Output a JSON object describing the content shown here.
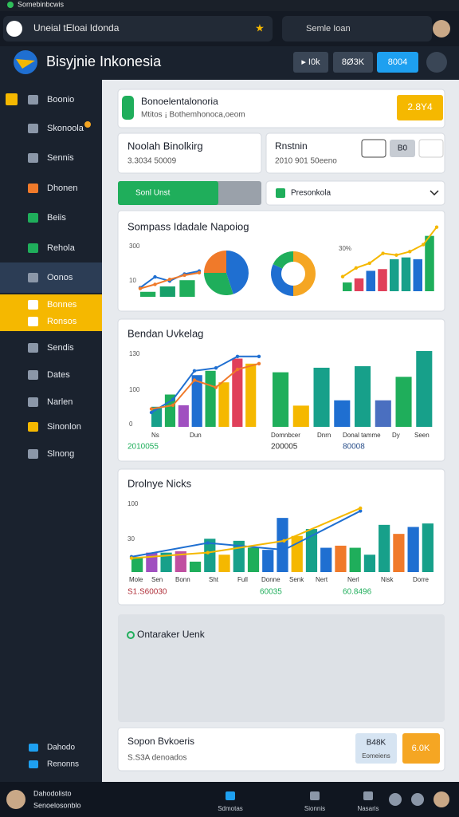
{
  "browser": {
    "tab": "Somebinbcwis",
    "address": "Uneial tEloai Idonda",
    "search": "Semle Ioan"
  },
  "header": {
    "title": "Bisyjnie Inkonesia",
    "buttons": [
      "▸ I0k",
      "8Ø3K",
      "8004"
    ]
  },
  "sidebar": {
    "items": [
      "Boonio",
      "Skonoola",
      "Sennis",
      "Dhonen",
      "Beiis",
      "Rehola",
      "Oonos",
      "Bonnes",
      "Ronsos",
      "Sendis",
      "Dates",
      "Narlen",
      "Sinonlon",
      "Slnong"
    ],
    "bottom": [
      "Dahodo",
      "Renonns"
    ]
  },
  "banner": {
    "title": "Bonoelentalonoria",
    "subtitle": "Mtitos ¡ Bothemhonoca,oeom",
    "badge": "2.8Y4"
  },
  "cards": [
    {
      "title": "Noolah Binolkirg",
      "subtitle": "3.3034 50009"
    },
    {
      "title": "Rnstnin",
      "subtitle": "2010 901 50eeno",
      "button": "B0"
    }
  ],
  "progress": {
    "label": "Sonl Unst",
    "value": 70
  },
  "select": {
    "label": "Presonkola"
  },
  "charts": [
    {
      "title": "Sompass Idadale Napoiog",
      "axis_labels": [
        "300",
        "10"
      ],
      "note": "30%",
      "left": {
        "ylim": [
          0,
          100
        ],
        "bars": [
          {
            "value": 12,
            "color": "#1fae5b"
          },
          {
            "value": 25,
            "color": "#17a06a"
          },
          {
            "value": 40,
            "color": "#1fae5b"
          }
        ],
        "lines": [
          {
            "color": "#1f6fd1",
            "values": [
              22,
              48,
              38,
              55,
              62
            ]
          },
          {
            "color": "#f07a2a",
            "values": [
              20,
              30,
              42,
              52,
              58
            ]
          }
        ]
      },
      "pie": {
        "values": [
          45,
          30,
          25
        ],
        "colors": [
          "#1f6fd1",
          "#1fae5b",
          "#f07a2a"
        ]
      },
      "donut": {
        "values": [
          50,
          32,
          18
        ],
        "colors": [
          "#f5a623",
          "#1f6fd1",
          "#1fae5b"
        ]
      },
      "right": {
        "ylim": [
          0,
          100
        ],
        "bars": [
          {
            "value": 15,
            "color": "#1fae5b"
          },
          {
            "value": 22,
            "color": "#e0405a"
          },
          {
            "value": 35,
            "color": "#1f6fd1"
          },
          {
            "value": 38,
            "color": "#e0405a"
          },
          {
            "value": 55,
            "color": "#17a08a"
          },
          {
            "value": 58,
            "color": "#17a08a"
          },
          {
            "value": 55,
            "color": "#1f6fd1"
          },
          {
            "value": 95,
            "color": "#1fae5b"
          }
        ],
        "lines": [
          {
            "color": "#f5b800",
            "values": [
              25,
              40,
              48,
              65,
              62,
              68,
              80,
              110
            ]
          }
        ]
      }
    },
    {
      "title": "Bendan Uvkelag",
      "axis_labels": [
        "130",
        "100",
        "0"
      ],
      "categories": [
        "Ns",
        "Dun",
        "Domnbcer",
        "Dnrn",
        "Donal tamme",
        "Dy",
        "Seen"
      ],
      "totals": [
        "2010055",
        "200005",
        "80008"
      ],
      "left": {
        "ylim": [
          0,
          100
        ],
        "bars": [
          {
            "value": 28,
            "color": "#17a08a"
          },
          {
            "value": 45,
            "color": "#1fae5b"
          },
          {
            "value": 30,
            "color": "#a050c0"
          },
          {
            "value": 72,
            "color": "#1f6fd1"
          },
          {
            "value": 78,
            "color": "#1fae5b"
          },
          {
            "value": 62,
            "color": "#f5b800"
          },
          {
            "value": 95,
            "color": "#e0405a"
          },
          {
            "value": 88,
            "color": "#f5b800"
          }
        ],
        "lines": [
          {
            "color": "#1f6fd1",
            "values": [
              20,
              38,
              78,
              82,
              98,
              98
            ]
          },
          {
            "color": "#f07a2a",
            "values": [
              25,
              30,
              65,
              55,
              80,
              88
            ]
          }
        ]
      },
      "right": {
        "ylim": [
          0,
          100
        ],
        "bars": [
          {
            "value": 72,
            "color": "#1fae5b"
          },
          {
            "value": 28,
            "color": "#f5b800"
          },
          {
            "value": 78,
            "color": "#17a08a"
          },
          {
            "value": 35,
            "color": "#1f6fd1"
          },
          {
            "value": 80,
            "color": "#17a08a"
          },
          {
            "value": 35,
            "color": "#4a6fc0"
          },
          {
            "value": 66,
            "color": "#1fae5b"
          },
          {
            "value": 100,
            "color": "#17a08a"
          }
        ]
      }
    },
    {
      "title": "Drolnye Nicks",
      "axis_labels": [
        "100",
        "30"
      ],
      "categories": [
        "Mole",
        "Sen",
        "Bonn",
        "Sht",
        "Full",
        "Donne",
        "Senk",
        "Nert",
        "Nerl",
        "Nisk",
        "Dorre"
      ],
      "totals": [
        "S1.S60030",
        "60035",
        "60.8496"
      ],
      "left": {
        "ylim": [
          0,
          100
        ],
        "bars": [
          {
            "value": 22,
            "color": "#1fae5b"
          },
          {
            "value": 28,
            "color": "#a050c0"
          },
          {
            "value": 28,
            "color": "#17a08a"
          },
          {
            "value": 30,
            "color": "#c050a0"
          },
          {
            "value": 15,
            "color": "#1fae5b"
          },
          {
            "value": 48,
            "color": "#17a08a"
          },
          {
            "value": 25,
            "color": "#f5b800"
          },
          {
            "value": 45,
            "color": "#17a08a"
          },
          {
            "value": 35,
            "color": "#1fae5b"
          },
          {
            "value": 32,
            "color": "#1f6fd1"
          },
          {
            "value": 78,
            "color": "#1f6fd1"
          },
          {
            "value": 52,
            "color": "#f5b800"
          },
          {
            "value": 62,
            "color": "#17a08a"
          },
          {
            "value": 35,
            "color": "#1f6fd1"
          },
          {
            "value": 38,
            "color": "#f07a2a"
          },
          {
            "value": 35,
            "color": "#1fae5b"
          },
          {
            "value": 25,
            "color": "#17a08a"
          },
          {
            "value": 68,
            "color": "#17a08a"
          },
          {
            "value": 55,
            "color": "#f07a2a"
          },
          {
            "value": 65,
            "color": "#1f6fd1"
          },
          {
            "value": 70,
            "color": "#17a08a"
          }
        ],
        "lines": [
          {
            "color": "#1f6fd1",
            "values": [
              22,
              42,
              32,
              88,
              null
            ]
          },
          {
            "color": "#f5b800",
            "values": [
              20,
              28,
              45,
              92,
              null
            ]
          }
        ]
      }
    }
  ],
  "empty_panel": {
    "title": "Ontaraker Uenk"
  },
  "footer_card": {
    "title": "Sopon Bvkoeris",
    "subtitle": "S.S3A denoados",
    "badge": "B48K",
    "badge_sub": "Eomeiens",
    "button": "6.0K"
  },
  "bottombar": {
    "user": "Dahodolisto",
    "user_sub": "Senoelosonblo",
    "nav": [
      "Sdmotas",
      "Sionnis",
      "Nasaris"
    ]
  }
}
